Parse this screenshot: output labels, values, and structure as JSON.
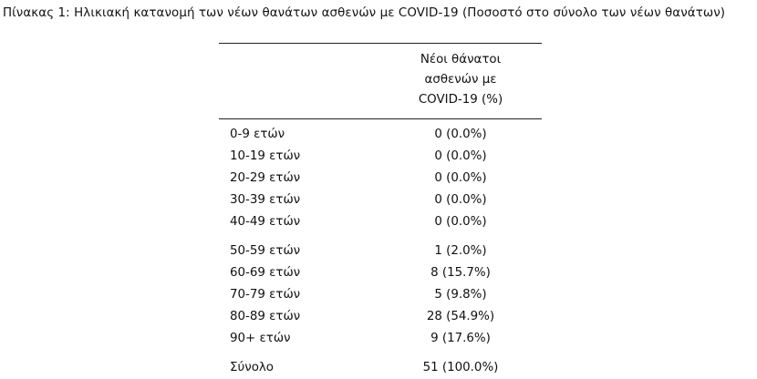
{
  "caption": "Πίνακας 1: Ηλικιακή κατανομή των νέων θανάτων ασθενών με COVID-19 (Ποσοστό στο σύνολο των νέων θανάτων)",
  "header": {
    "line1": "Νέοι θάνατοι",
    "line2": "ασθενών με",
    "line3": "COVID-19 (%)"
  },
  "rows": [
    {
      "label": "0-9 ετών",
      "value": "0 (0.0%)"
    },
    {
      "label": "10-19 ετών",
      "value": "0 (0.0%)"
    },
    {
      "label": "20-29 ετών",
      "value": "0 (0.0%)"
    },
    {
      "label": "30-39 ετών",
      "value": "0 (0.0%)"
    },
    {
      "label": "40-49 ετών",
      "value": "0 (0.0%)"
    },
    {
      "label": "50-59 ετών",
      "value": "1 (2.0%)"
    },
    {
      "label": "60-69 ετών",
      "value": "8 (15.7%)"
    },
    {
      "label": "70-79 ετών",
      "value": "5 (9.8%)"
    },
    {
      "label": "80-89 ετών",
      "value": "28 (54.9%)"
    },
    {
      "label": "90+ ετών",
      "value": "9 (17.6%)"
    }
  ],
  "total": {
    "label": "Σύνολο",
    "value": "51 (100.0%)"
  }
}
